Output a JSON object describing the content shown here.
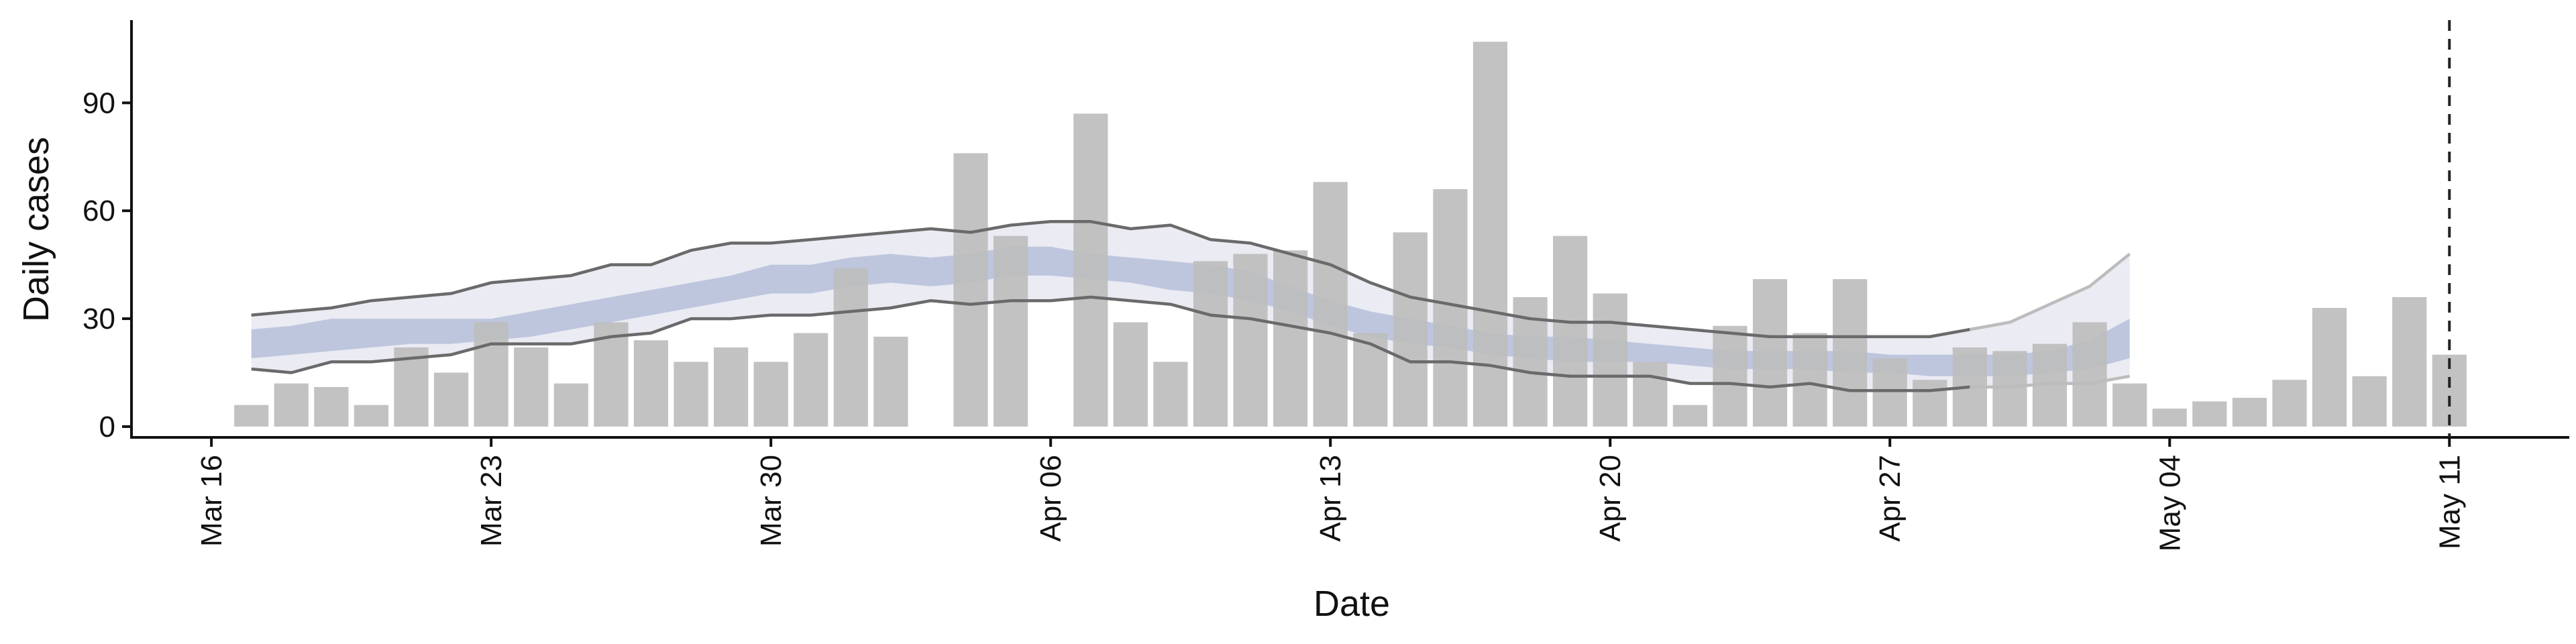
{
  "chart_data": {
    "type": "bar",
    "title": "",
    "xlabel": "Date",
    "ylabel": "Daily cases",
    "x_axis": {
      "type": "date",
      "range": [
        "2020-03-14",
        "2020-05-14"
      ],
      "ticks": [
        "2020-03-16",
        "2020-03-23",
        "2020-03-30",
        "2020-04-06",
        "2020-04-13",
        "2020-04-20",
        "2020-04-27",
        "2020-05-04",
        "2020-05-11"
      ],
      "tick_labels": [
        "Mar 16",
        "Mar 23",
        "Mar 30",
        "Apr 06",
        "Apr 13",
        "Apr 20",
        "Apr 27",
        "May 04",
        "May 11"
      ]
    },
    "y_axis": {
      "range": [
        -3,
        113
      ],
      "ticks": [
        0,
        30,
        60,
        90
      ],
      "tick_labels": [
        "0",
        "30",
        "60",
        "90"
      ]
    },
    "grid": false,
    "vline": {
      "date": "2020-05-11",
      "style": "dashed",
      "color": "#222222"
    },
    "colors": {
      "bars": "#bdbdbd",
      "band_outer": "#e6e8f1",
      "band_inner": "#b6c0d9",
      "quantile_line_past": "#6a6a6a",
      "quantile_line_future": "#bcbcbc",
      "axis": "#111111"
    },
    "bars": {
      "dates": [
        "2020-03-17",
        "2020-03-18",
        "2020-03-19",
        "2020-03-20",
        "2020-03-21",
        "2020-03-22",
        "2020-03-23",
        "2020-03-24",
        "2020-03-25",
        "2020-03-26",
        "2020-03-27",
        "2020-03-28",
        "2020-03-29",
        "2020-03-30",
        "2020-03-31",
        "2020-04-01",
        "2020-04-02",
        "2020-04-04",
        "2020-04-05",
        "2020-04-07",
        "2020-04-08",
        "2020-04-09",
        "2020-04-10",
        "2020-04-11",
        "2020-04-12",
        "2020-04-13",
        "2020-04-14",
        "2020-04-15",
        "2020-04-16",
        "2020-04-17",
        "2020-04-18",
        "2020-04-19",
        "2020-04-20",
        "2020-04-21",
        "2020-04-22",
        "2020-04-23",
        "2020-04-24",
        "2020-04-25",
        "2020-04-26",
        "2020-04-27",
        "2020-04-28",
        "2020-04-29",
        "2020-04-30",
        "2020-05-01",
        "2020-05-02",
        "2020-05-03",
        "2020-05-04",
        "2020-05-05",
        "2020-05-06",
        "2020-05-07",
        "2020-05-08",
        "2020-05-09",
        "2020-05-10",
        "2020-05-11"
      ],
      "values": [
        6,
        12,
        11,
        6,
        22,
        15,
        29,
        22,
        12,
        29,
        24,
        18,
        22,
        18,
        26,
        44,
        25,
        76,
        53,
        87,
        29,
        18,
        46,
        48,
        49,
        68,
        26,
        54,
        66,
        107,
        36,
        53,
        37,
        18,
        6,
        28,
        41,
        26,
        41,
        19,
        13,
        22,
        21,
        23,
        29,
        12,
        5,
        7,
        8,
        13,
        33,
        14,
        36,
        20
      ]
    },
    "series": [
      {
        "role": "band-90",
        "dates": [
          "2020-03-17",
          "2020-03-18",
          "2020-03-19",
          "2020-03-20",
          "2020-03-21",
          "2020-03-22",
          "2020-03-23",
          "2020-03-24",
          "2020-03-25",
          "2020-03-26",
          "2020-03-27",
          "2020-03-28",
          "2020-03-29",
          "2020-03-30",
          "2020-03-31",
          "2020-04-01",
          "2020-04-02",
          "2020-04-03",
          "2020-04-04",
          "2020-04-05",
          "2020-04-06",
          "2020-04-07",
          "2020-04-08",
          "2020-04-09",
          "2020-04-10",
          "2020-04-11",
          "2020-04-12",
          "2020-04-13",
          "2020-04-14",
          "2020-04-15",
          "2020-04-16",
          "2020-04-17",
          "2020-04-18",
          "2020-04-19",
          "2020-04-20",
          "2020-04-21",
          "2020-04-22",
          "2020-04-23",
          "2020-04-24",
          "2020-04-25",
          "2020-04-26",
          "2020-04-27",
          "2020-04-28",
          "2020-04-29",
          "2020-04-30",
          "2020-05-01",
          "2020-05-02",
          "2020-05-03"
        ],
        "upper": [
          31,
          32,
          33,
          35,
          36,
          37,
          40,
          41,
          42,
          45,
          45,
          49,
          51,
          51,
          52,
          53,
          54,
          55,
          54,
          56,
          57,
          57,
          55,
          56,
          52,
          51,
          48,
          45,
          40,
          36,
          34,
          32,
          30,
          29,
          29,
          28,
          27,
          26,
          25,
          25,
          25,
          25,
          25,
          27,
          29,
          34,
          39,
          48
        ],
        "lower": [
          16,
          15,
          18,
          18,
          19,
          20,
          23,
          23,
          23,
          25,
          26,
          30,
          30,
          31,
          31,
          32,
          33,
          35,
          34,
          35,
          35,
          36,
          35,
          34,
          31,
          30,
          28,
          26,
          23,
          18,
          18,
          17,
          15,
          14,
          14,
          14,
          12,
          12,
          11,
          12,
          10,
          10,
          10,
          11,
          11,
          12,
          12,
          14
        ]
      },
      {
        "role": "band-50",
        "dates": [
          "2020-03-17",
          "2020-03-18",
          "2020-03-19",
          "2020-03-20",
          "2020-03-21",
          "2020-03-22",
          "2020-03-23",
          "2020-03-24",
          "2020-03-25",
          "2020-03-26",
          "2020-03-27",
          "2020-03-28",
          "2020-03-29",
          "2020-03-30",
          "2020-03-31",
          "2020-04-01",
          "2020-04-02",
          "2020-04-03",
          "2020-04-04",
          "2020-04-05",
          "2020-04-06",
          "2020-04-07",
          "2020-04-08",
          "2020-04-09",
          "2020-04-10",
          "2020-04-11",
          "2020-04-12",
          "2020-04-13",
          "2020-04-14",
          "2020-04-15",
          "2020-04-16",
          "2020-04-17",
          "2020-04-18",
          "2020-04-19",
          "2020-04-20",
          "2020-04-21",
          "2020-04-22",
          "2020-04-23",
          "2020-04-24",
          "2020-04-25",
          "2020-04-26",
          "2020-04-27",
          "2020-04-28",
          "2020-04-29",
          "2020-04-30",
          "2020-05-01",
          "2020-05-02",
          "2020-05-03"
        ],
        "upper": [
          27,
          28,
          30,
          30,
          30,
          30,
          30,
          32,
          34,
          36,
          38,
          40,
          42,
          45,
          45,
          47,
          48,
          47,
          48,
          50,
          50,
          48,
          47,
          46,
          45,
          43,
          39,
          35,
          32,
          30,
          28,
          26,
          25,
          25,
          24,
          23,
          22,
          21,
          21,
          21,
          21,
          20,
          20,
          20,
          20,
          21,
          24,
          30
        ],
        "lower": [
          19,
          20,
          21,
          22,
          23,
          23,
          24,
          25,
          27,
          29,
          31,
          33,
          35,
          37,
          37,
          39,
          40,
          39,
          40,
          42,
          42,
          41,
          40,
          38,
          37,
          35,
          32,
          28,
          25,
          23,
          22,
          20,
          19,
          18,
          18,
          18,
          17,
          16,
          16,
          16,
          15,
          15,
          14,
          14,
          14,
          15,
          16,
          19
        ]
      }
    ]
  }
}
